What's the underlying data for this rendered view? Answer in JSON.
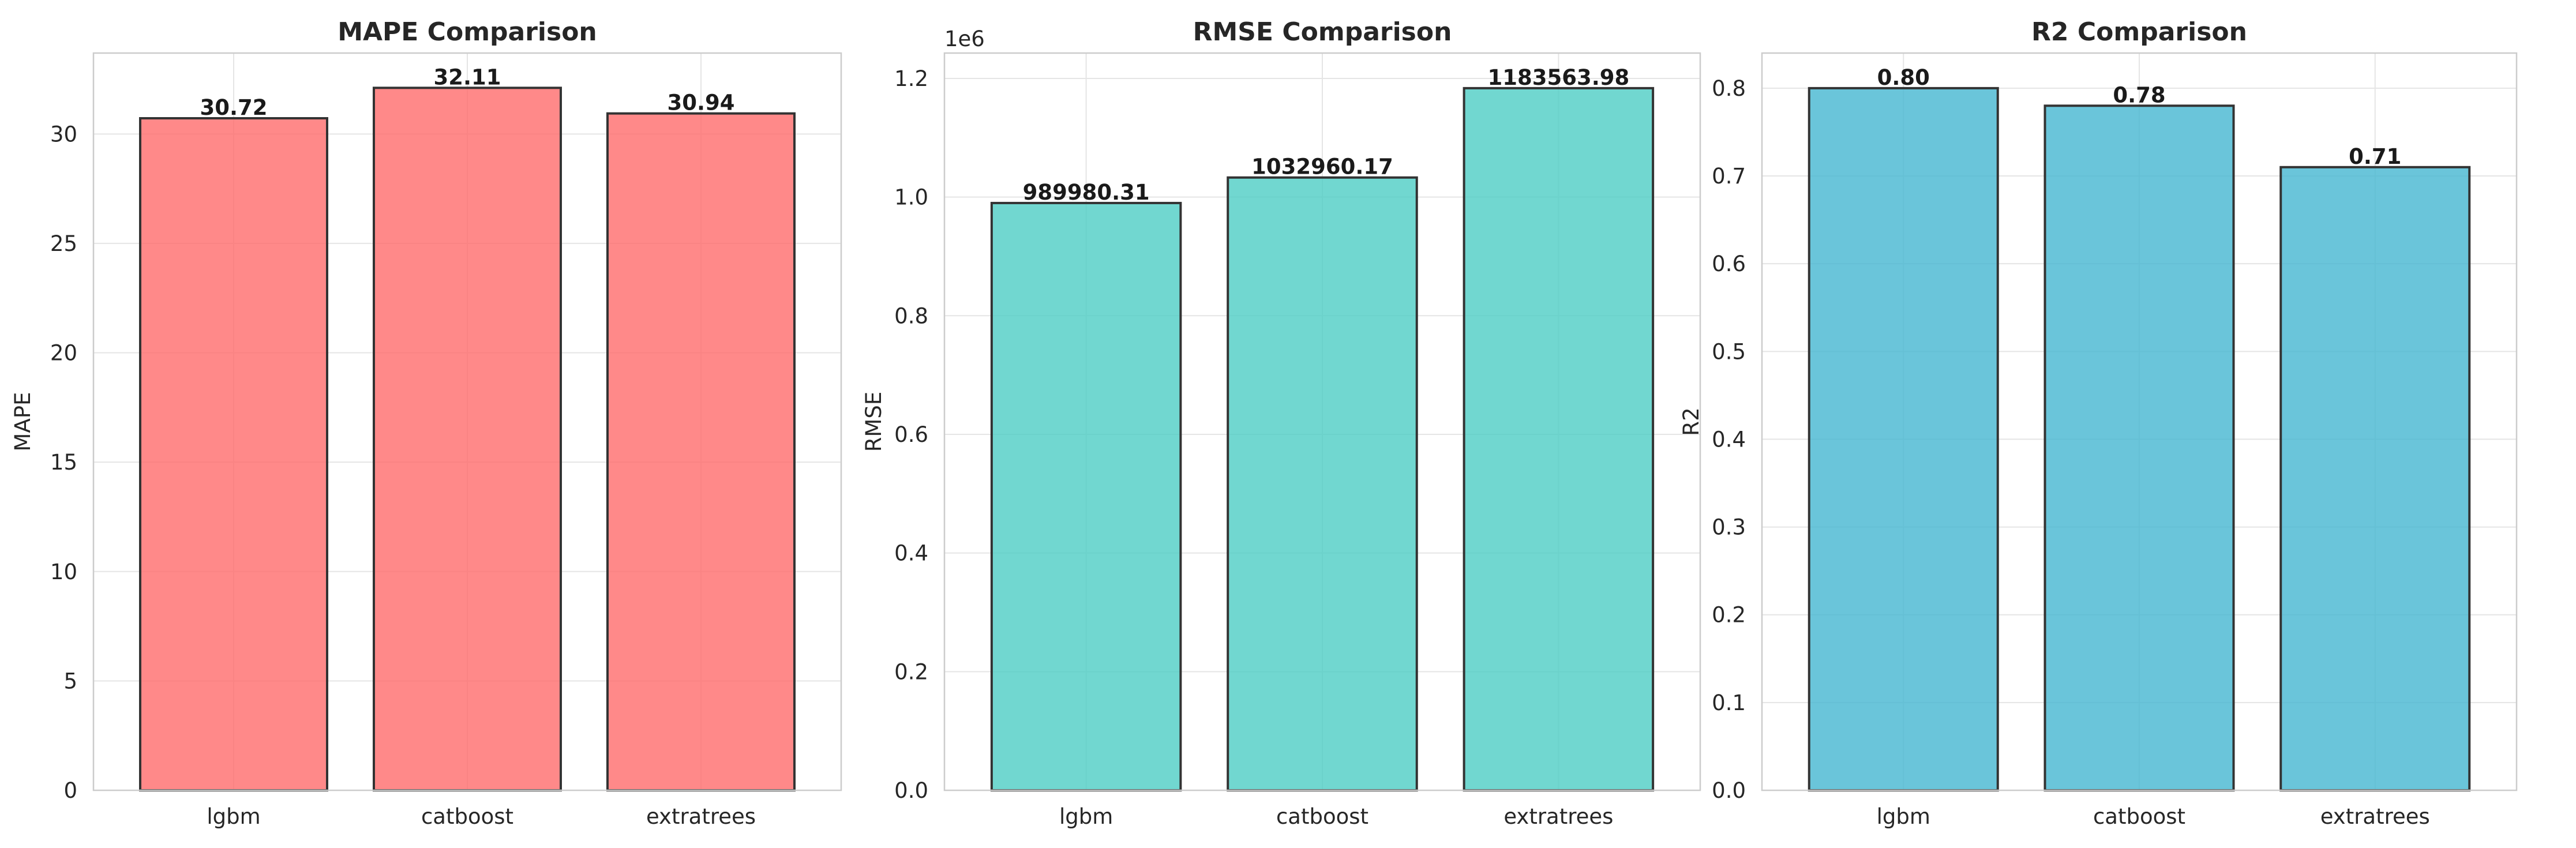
{
  "chart_data": [
    {
      "type": "bar",
      "title": "MAPE Comparison",
      "ylabel": "MAPE",
      "categories": [
        "lgbm",
        "catboost",
        "extratrees"
      ],
      "values": [
        30.72,
        32.11,
        30.94
      ],
      "value_labels": [
        "30.72",
        "32.11",
        "30.94"
      ],
      "ylim": [
        0,
        33.7
      ],
      "yticks": [
        0,
        5,
        10,
        15,
        20,
        25,
        30
      ],
      "ytick_labels": [
        "0",
        "5",
        "10",
        "15",
        "20",
        "25",
        "30"
      ],
      "offset_label": "",
      "color": "#FF6B6B",
      "grid": true
    },
    {
      "type": "bar",
      "title": "RMSE Comparison",
      "ylabel": "RMSE",
      "categories": [
        "lgbm",
        "catboost",
        "extratrees"
      ],
      "values": [
        989980.31,
        1032960.17,
        1183563.98
      ],
      "value_labels": [
        "989980.31",
        "1032960.17",
        "1183563.98"
      ],
      "ylim": [
        0,
        1242742
      ],
      "yticks": [
        0,
        200000,
        400000,
        600000,
        800000,
        1000000,
        1200000
      ],
      "ytick_labels": [
        "0.0",
        "0.2",
        "0.4",
        "0.6",
        "0.8",
        "1.0",
        "1.2"
      ],
      "offset_label": "1e6",
      "color": "#4ECDC4",
      "grid": true
    },
    {
      "type": "bar",
      "title": "R2 Comparison",
      "ylabel": "R2",
      "categories": [
        "lgbm",
        "catboost",
        "extratrees"
      ],
      "values": [
        0.8,
        0.78,
        0.71
      ],
      "value_labels": [
        "0.80",
        "0.78",
        "0.71"
      ],
      "ylim": [
        0,
        0.84
      ],
      "yticks": [
        0,
        0.1,
        0.2,
        0.3,
        0.4,
        0.5,
        0.6,
        0.7,
        0.8
      ],
      "ytick_labels": [
        "0.0",
        "0.1",
        "0.2",
        "0.3",
        "0.4",
        "0.5",
        "0.6",
        "0.7",
        "0.8"
      ],
      "offset_label": "",
      "color": "#45B7D1",
      "grid": true
    }
  ]
}
